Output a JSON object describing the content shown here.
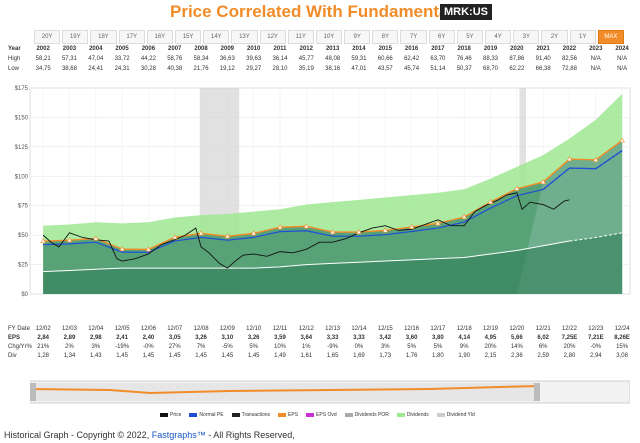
{
  "header": {
    "title": "Price Correlated With Fundamentals",
    "ticker": "MRK:US"
  },
  "periods": [
    "20Y",
    "19Y",
    "18Y",
    "17Y",
    "16Y",
    "15Y",
    "14Y",
    "13Y",
    "12Y",
    "11Y",
    "10Y",
    "9Y",
    "8Y",
    "7Y",
    "6Y",
    "5Y",
    "4Y",
    "3Y",
    "2Y",
    "1Y",
    "MAX"
  ],
  "active_period": "MAX",
  "year_table": {
    "label_year": "Year",
    "label_high": "High",
    "label_low": "Low",
    "years": [
      "2002",
      "2003",
      "2004",
      "2005",
      "2006",
      "2007",
      "2008",
      "2009",
      "2010",
      "2011",
      "2012",
      "2013",
      "2014",
      "2015",
      "2016",
      "2017",
      "2018",
      "2019",
      "2020",
      "2021",
      "2022",
      "2023",
      "2024"
    ],
    "high": [
      "58,21",
      "57,31",
      "47,04",
      "33,72",
      "44,22",
      "58,76",
      "58,34",
      "36,63",
      "39,63",
      "36,14",
      "45,77",
      "48,08",
      "59,31",
      "60,66",
      "62,42",
      "63,70",
      "76,46",
      "88,33",
      "87,86",
      "91,40",
      "82,56",
      "N/A",
      "N/A"
    ],
    "low": [
      "34,75",
      "38,68",
      "24,41",
      "24,31",
      "30,28",
      "40,38",
      "21,76",
      "19,12",
      "29,27",
      "28,10",
      "35,19",
      "38,16",
      "47,01",
      "43,57",
      "45,74",
      "51,14",
      "50,37",
      "68,70",
      "62,22",
      "66,38",
      "72,88",
      "N/A",
      "N/A"
    ]
  },
  "data_table": {
    "label_fy": "FY Date",
    "label_eps": "EPS",
    "label_chg": "Chg/Yr%",
    "label_div": "Div",
    "fy_dates": [
      "12/02",
      "12/03",
      "12/04",
      "12/05",
      "12/06",
      "12/07",
      "12/08",
      "12/09",
      "12/10",
      "12/11",
      "12/12",
      "12/13",
      "12/14",
      "12/15",
      "12/16",
      "12/17",
      "12/18",
      "12/19",
      "12/20",
      "12/21",
      "12/22",
      "12/23",
      "12/24"
    ],
    "eps": [
      "2,84",
      "2,89",
      "2,98",
      "2,41",
      "2,40",
      "3,05",
      "3,26",
      "3,10",
      "3,26",
      "3,59",
      "3,64",
      "3,33",
      "3,33",
      "3,42",
      "3,60",
      "3,80",
      "4,14",
      "4,95",
      "5,66",
      "6,02",
      "7,25E",
      "7,21E",
      "8,26E"
    ],
    "chg": [
      "21%",
      "2%",
      "3%",
      "-19%",
      "-0%",
      "27%",
      "7%",
      "-5%",
      "5%",
      "10%",
      "1%",
      "-9%",
      "0%",
      "3%",
      "5%",
      "5%",
      "9%",
      "20%",
      "14%",
      "6%",
      "20%",
      "-0%",
      "15%"
    ],
    "div": [
      "1,28",
      "1,34",
      "1,43",
      "1,45",
      "1,45",
      "1,45",
      "1,45",
      "1,45",
      "1,45",
      "1,49",
      "1,61",
      "1,65",
      "1,69",
      "1,73",
      "1,76",
      "1,80",
      "1,90",
      "2,15",
      "2,36",
      "2,59",
      "2,80",
      "2,94",
      "3,08"
    ]
  },
  "chart_data": {
    "type": "line",
    "x": [
      2002,
      2003,
      2004,
      2005,
      2006,
      2007,
      2008,
      2009,
      2010,
      2011,
      2012,
      2013,
      2014,
      2015,
      2016,
      2017,
      2018,
      2019,
      2020,
      2021,
      2022,
      2023,
      2024
    ],
    "ylim": [
      0,
      175
    ],
    "xlim": [
      2001.5,
      2024.3
    ],
    "yticks": [
      "$0",
      "$25",
      "$50",
      "$75",
      "$100",
      "$125",
      "$150",
      "$175"
    ],
    "ytick_values": [
      0,
      25,
      50,
      75,
      100,
      125,
      150,
      175
    ],
    "recession_bands": [
      [
        2007.95,
        2009.45
      ],
      [
        2020.1,
        2020.35
      ]
    ],
    "series": [
      {
        "name": "Price",
        "color": "#111111",
        "x": [
          2002,
          2002.3,
          2002.6,
          2003,
          2003.5,
          2004,
          2004.5,
          2004.8,
          2005,
          2005.5,
          2006,
          2006.5,
          2007,
          2007.4,
          2007.8,
          2008,
          2008.3,
          2008.7,
          2009,
          2009.3,
          2009.6,
          2010,
          2010.5,
          2011,
          2011.5,
          2012,
          2012.5,
          2013,
          2013.5,
          2014,
          2014.5,
          2015,
          2015.5,
          2016,
          2016.5,
          2017,
          2017.5,
          2018,
          2018.4,
          2018.8,
          2019,
          2019.3,
          2019.6,
          2020,
          2020.2,
          2020.5,
          2021,
          2021.4,
          2021.8,
          2022
        ],
        "y": [
          50,
          44,
          40,
          52,
          48,
          46,
          45,
          30,
          28,
          30,
          34,
          42,
          46,
          50,
          56,
          40,
          35,
          26,
          22,
          28,
          33,
          34,
          32,
          36,
          35,
          38,
          44,
          44,
          47,
          52,
          56,
          58,
          54,
          55,
          59,
          63,
          58,
          58,
          70,
          75,
          77,
          80,
          84,
          86,
          72,
          78,
          76,
          72,
          79,
          80
        ]
      },
      {
        "name": "Normal PE",
        "color": "#1f4fd6",
        "y": [
          41.9,
          42.6,
          44.0,
          35.6,
          35.4,
          45.0,
          48.1,
          45.7,
          48.1,
          53.0,
          53.7,
          49.1,
          49.1,
          50.4,
          53.1,
          56.0,
          61.1,
          73.0,
          83.5,
          88.8,
          107.0,
          106.4,
          121.8
        ]
      },
      {
        "name": "EPS",
        "color": "#f28c28",
        "y": [
          44.9,
          45.7,
          47.1,
          38.1,
          37.9,
          48.2,
          51.5,
          49.0,
          51.5,
          56.7,
          57.5,
          52.6,
          52.6,
          54.0,
          56.9,
          60.0,
          65.4,
          78.2,
          89.4,
          95.1,
          114.6,
          113.9,
          130.5
        ]
      },
      {
        "name": "Dividends",
        "color": "#9de890",
        "y": [
          58,
          59,
          61,
          60,
          61,
          65,
          67,
          68,
          70,
          72,
          76,
          78,
          80,
          82,
          84,
          86,
          89,
          98,
          108,
          118,
          132,
          148,
          170
        ]
      },
      {
        "name": "Dividends POR",
        "color": "#ffffff",
        "y": [
          19,
          20,
          21,
          22,
          22,
          22,
          22,
          22,
          22,
          23,
          25,
          26,
          27,
          28,
          29,
          30,
          31,
          34,
          37,
          41,
          45,
          48,
          52
        ]
      }
    ]
  },
  "legend": [
    {
      "label": "Price",
      "color": "#111111"
    },
    {
      "label": "Normal PE",
      "color": "#1f4fd6"
    },
    {
      "label": "Transactions",
      "color": "#222222"
    },
    {
      "label": "EPS",
      "color": "#f28c28"
    },
    {
      "label": "EPS Ovd",
      "color": "#cc2fd6"
    },
    {
      "label": "Dividends POR",
      "color": "#aaaaaa"
    },
    {
      "label": "Dividends",
      "color": "#9de890"
    },
    {
      "label": "Dividend Yld",
      "color": "#cccccc"
    }
  ],
  "footer": {
    "prefix": "Historical Graph - Copyright © 2022, ",
    "link": "Fastgraphs™",
    "suffix": " - All Rights Reserved,"
  }
}
